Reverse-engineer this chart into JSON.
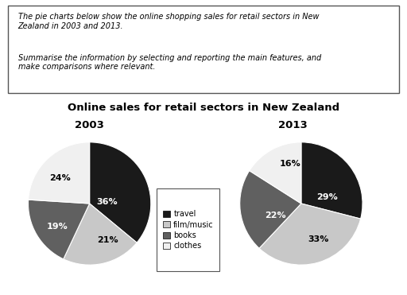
{
  "title": "Online sales for retail sectors in New Zealand",
  "year_2003": "2003",
  "year_2013": "2013",
  "categories": [
    "travel",
    "film/music",
    "books",
    "clothes"
  ],
  "colors": [
    "#1a1a1a",
    "#c8c8c8",
    "#606060",
    "#f0f0f0"
  ],
  "values_2003": [
    36,
    21,
    19,
    24
  ],
  "values_2013": [
    29,
    33,
    22,
    16
  ],
  "labels_2003": [
    "36%",
    "21%",
    "19%",
    "24%"
  ],
  "labels_2013": [
    "29%",
    "33%",
    "22%",
    "16%"
  ],
  "startangle_2003": 90,
  "startangle_2013": 90,
  "box_text_line1": "The pie charts below show the online shopping sales for retail sectors in New\nZealand in 2003 and 2013.",
  "box_text_line2": "Summarise the information by selecting and reporting the main features, and\nmake comparisons where relevant.",
  "background_color": "#ffffff"
}
